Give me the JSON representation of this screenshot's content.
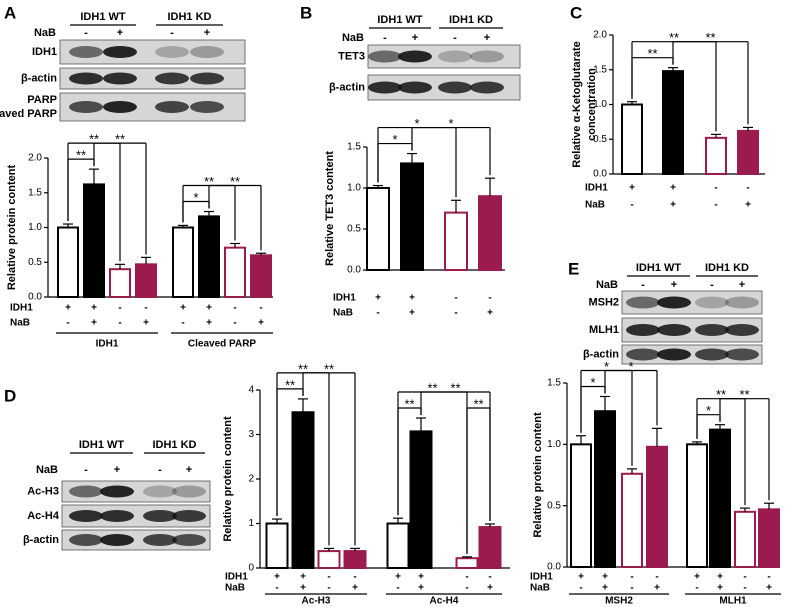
{
  "panels": [
    "A",
    "B",
    "C",
    "D",
    "E"
  ],
  "blots": [
    {
      "groups": [
        "IDH1 WT",
        "IDH1 KD"
      ],
      "treatment": "NaB",
      "treatment_marks": [
        "-",
        "+",
        "-",
        "+"
      ],
      "rows": [
        "IDH1",
        "β-actin",
        "PARP",
        "Cleaved PARP"
      ]
    },
    {
      "groups": [
        "IDH1 WT",
        "IDH1 KD"
      ],
      "treatment": "NaB",
      "treatment_marks": [
        "-",
        "+",
        "-",
        "+"
      ],
      "rows": [
        "TET3",
        "β-actin"
      ]
    },
    {
      "groups": [
        "IDH1 WT",
        "IDH1 KD"
      ],
      "treatment": "NaB",
      "treatment_marks": [
        "-",
        "+",
        "-",
        "+"
      ],
      "rows": [
        "Ac-H3",
        "Ac-H4",
        "β-actin"
      ]
    },
    {
      "groups": [
        "IDH1 WT",
        "IDH1 KD"
      ],
      "treatment": "NaB",
      "treatment_marks": [
        "-",
        "+",
        "-",
        "+"
      ],
      "rows": [
        "MSH2",
        "MLH1",
        "β-actin"
      ]
    }
  ],
  "chart_data": [
    {
      "type": "bar",
      "ylabel": [
        "Relative protein content"
      ],
      "ylim": [
        0,
        2
      ],
      "yticks": [
        {
          "value": 0,
          "label": "0.0"
        },
        0.5,
        {
          "value": 1,
          "label": "1.0"
        },
        1.5,
        {
          "value": 2,
          "label": "2.0"
        }
      ],
      "colors": [
        "#ffffff",
        "#000000",
        "#ffffff",
        "#9b1b4f"
      ],
      "edge_colors": [
        "#000000",
        "#000000",
        "#9b1b4f",
        "#9b1b4f"
      ],
      "groups": [
        {
          "name": "IDH1",
          "values": [
            1.0,
            1.62,
            0.4,
            0.47
          ],
          "errors": [
            0.05,
            0.22,
            0.07,
            0.1
          ],
          "significance": [
            "**",
            "**",
            "**"
          ]
        },
        {
          "name": "Cleaved PARP",
          "values": [
            1.0,
            1.16,
            0.71,
            0.6
          ],
          "errors": [
            0.03,
            0.07,
            0.06,
            0.03
          ],
          "significance": [
            "*",
            "**",
            "**"
          ]
        }
      ],
      "conditions": [
        {
          "name": "IDH1",
          "marks": [
            "+",
            "+",
            "-",
            "-"
          ]
        },
        {
          "name": "NaB",
          "marks": [
            "-",
            "+",
            "-",
            "+"
          ]
        }
      ]
    },
    {
      "type": "bar",
      "ylabel": [
        "Relative TET3 content"
      ],
      "ylim": [
        0,
        1.5
      ],
      "yticks": [
        {
          "value": 0,
          "label": "0.0"
        },
        0.5,
        {
          "value": 1,
          "label": "1.0"
        },
        1.5
      ],
      "colors": [
        "#ffffff",
        "#000000",
        "#ffffff",
        "#9b1b4f"
      ],
      "edge_colors": [
        "#000000",
        "#000000",
        "#9b1b4f",
        "#9b1b4f"
      ],
      "groups": [
        {
          "values": [
            1.0,
            1.3,
            0.7,
            0.9
          ],
          "errors": [
            0.03,
            0.12,
            0.15,
            0.22
          ],
          "significance": [
            "*",
            "*",
            "*"
          ]
        }
      ],
      "conditions": [
        {
          "name": "IDH1",
          "marks": [
            "+",
            "+",
            "-",
            "-"
          ]
        },
        {
          "name": "NaB",
          "marks": [
            "-",
            "+",
            "-",
            "+"
          ]
        }
      ]
    },
    {
      "type": "bar",
      "ylabel": [
        "Relative α-Ketoglutarate",
        "concentration"
      ],
      "ylim": [
        0,
        2
      ],
      "yticks": [
        {
          "value": 0,
          "label": "0.0"
        },
        0.5,
        {
          "value": 1,
          "label": "1.0"
        },
        1.5,
        {
          "value": 2,
          "label": "2.0"
        }
      ],
      "colors": [
        "#ffffff",
        "#000000",
        "#ffffff",
        "#9b1b4f"
      ],
      "edge_colors": [
        "#000000",
        "#000000",
        "#9b1b4f",
        "#9b1b4f"
      ],
      "groups": [
        {
          "values": [
            1.0,
            1.48,
            0.52,
            0.62
          ],
          "errors": [
            0.04,
            0.05,
            0.05,
            0.05
          ],
          "significance": [
            "**",
            "**",
            "**"
          ]
        }
      ],
      "conditions": [
        {
          "name": "IDH1",
          "marks": [
            "+",
            "+",
            "-",
            "-"
          ]
        },
        {
          "name": "NaB",
          "marks": [
            "-",
            "+",
            "-",
            "+"
          ]
        }
      ]
    },
    {
      "type": "bar",
      "ylabel": [
        "Relative protein content"
      ],
      "ylim": [
        0,
        4
      ],
      "yticks": [
        0,
        1,
        2,
        3,
        4
      ],
      "colors": [
        "#ffffff",
        "#000000",
        "#ffffff",
        "#9b1b4f"
      ],
      "edge_colors": [
        "#000000",
        "#000000",
        "#9b1b4f",
        "#9b1b4f"
      ],
      "groups": [
        {
          "name": "Ac-H3",
          "values": [
            1.0,
            3.5,
            0.38,
            0.38
          ],
          "errors": [
            0.1,
            0.3,
            0.06,
            0.06
          ],
          "significance": [
            "**",
            "**",
            "**"
          ]
        },
        {
          "name": "Ac-H4",
          "values": [
            1.0,
            3.07,
            0.22,
            0.92
          ],
          "errors": [
            0.12,
            0.3,
            0.03,
            0.07
          ],
          "significance": [
            "**",
            "**",
            "**",
            "**"
          ]
        }
      ],
      "conditions": [
        {
          "name": "IDH1",
          "marks": [
            "+",
            "+",
            "-",
            "-"
          ]
        },
        {
          "name": "NaB",
          "marks": [
            "-",
            "+",
            "-",
            "+"
          ]
        }
      ]
    },
    {
      "type": "bar",
      "ylabel": [
        "Relative protein content"
      ],
      "ylim": [
        0,
        1.5
      ],
      "yticks": [
        {
          "value": 0,
          "label": "0.0"
        },
        0.5,
        {
          "value": 1,
          "label": "1.0"
        },
        1.5
      ],
      "colors": [
        "#ffffff",
        "#000000",
        "#ffffff",
        "#9b1b4f"
      ],
      "edge_colors": [
        "#000000",
        "#000000",
        "#9b1b4f",
        "#9b1b4f"
      ],
      "groups": [
        {
          "name": "MSH2",
          "values": [
            1.0,
            1.27,
            0.76,
            0.98
          ],
          "errors": [
            0.07,
            0.12,
            0.04,
            0.15
          ],
          "significance": [
            "*",
            "*",
            "*"
          ]
        },
        {
          "name": "MLH1",
          "values": [
            1.0,
            1.12,
            0.45,
            0.47
          ],
          "errors": [
            0.02,
            0.04,
            0.03,
            0.05
          ],
          "significance": [
            "*",
            "**",
            "**"
          ]
        }
      ],
      "conditions": [
        {
          "name": "IDH1",
          "marks": [
            "+",
            "+",
            "-",
            "-"
          ]
        },
        {
          "name": "NaB",
          "marks": [
            "-",
            "+",
            "-",
            "+"
          ]
        }
      ]
    }
  ]
}
